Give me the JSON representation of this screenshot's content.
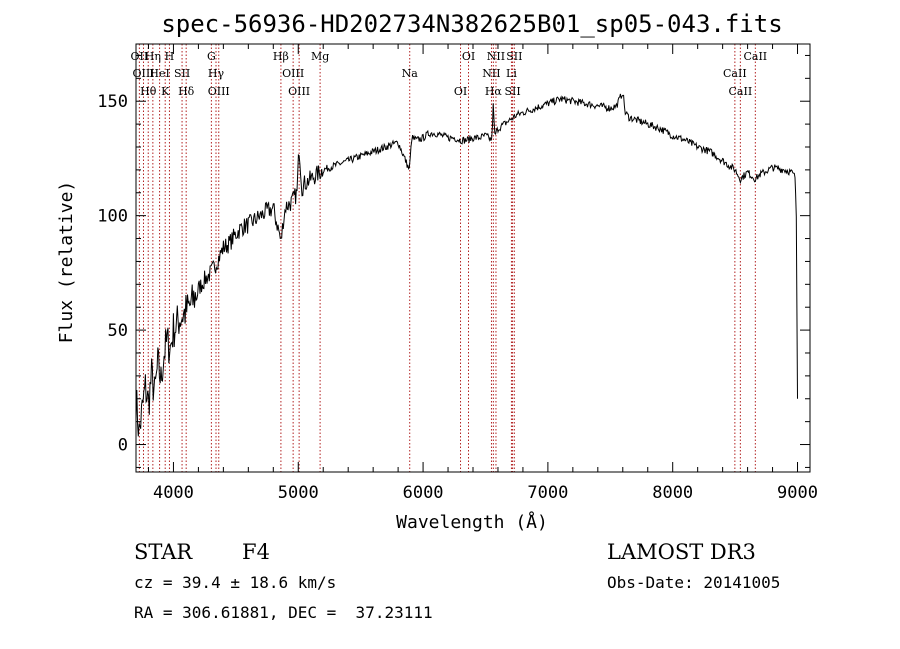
{
  "chart_data": {
    "type": "line",
    "title": "spec-56936-HD202734N382625B01_sp05-043.fits",
    "xlabel": "Wavelength (Å)",
    "ylabel": "Flux (relative)",
    "xlim": [
      3700,
      9100
    ],
    "ylim": [
      -12,
      175
    ],
    "xticks": [
      4000,
      5000,
      6000,
      7000,
      8000,
      9000
    ],
    "xtick_labels": [
      "4000",
      "5000",
      "6000",
      "7000",
      "8000",
      "9000"
    ],
    "yticks": [
      0,
      50,
      100,
      150
    ],
    "ytick_labels": [
      "0",
      "50",
      "100",
      "150"
    ],
    "grid": false,
    "legend": "none",
    "series": [
      {
        "name": "spectrum",
        "x": [
          3700,
          3725,
          3750,
          3775,
          3800,
          3825,
          3850,
          3875,
          3900,
          3925,
          3950,
          3975,
          4000,
          4050,
          4100,
          4150,
          4200,
          4250,
          4300,
          4350,
          4400,
          4450,
          4500,
          4550,
          4600,
          4650,
          4700,
          4750,
          4800,
          4850,
          4861,
          4880,
          4900,
          4950,
          4990,
          5007,
          5030,
          5050,
          5100,
          5150,
          5200,
          5300,
          5400,
          5500,
          5600,
          5700,
          5800,
          5890,
          5910,
          5950,
          6000,
          6050,
          6100,
          6150,
          6200,
          6250,
          6300,
          6350,
          6400,
          6450,
          6500,
          6550,
          6562,
          6575,
          6600,
          6650,
          6700,
          6750,
          6800,
          6900,
          7000,
          7100,
          7200,
          7300,
          7400,
          7500,
          7550,
          7600,
          7620,
          7650,
          7700,
          7800,
          7900,
          8000,
          8100,
          8200,
          8300,
          8400,
          8500,
          8542,
          8600,
          8662,
          8700,
          8800,
          8900,
          8950,
          8980,
          8990,
          9000
        ],
        "y": [
          20,
          5,
          15,
          25,
          18,
          30,
          22,
          35,
          28,
          40,
          45,
          42,
          50,
          55,
          58,
          62,
          68,
          72,
          75,
          80,
          86,
          88,
          92,
          95,
          96,
          98,
          100,
          102,
          103,
          92,
          88,
          98,
          104,
          106,
          110,
          130,
          112,
          114,
          116,
          118,
          120,
          122,
          124,
          126,
          128,
          130,
          132,
          120,
          134,
          133,
          134,
          136,
          136,
          135,
          134,
          134,
          133,
          133,
          134,
          134,
          135,
          133,
          148,
          135,
          138,
          140,
          142,
          144,
          145,
          147,
          149,
          151,
          150,
          149,
          148,
          147,
          148,
          154,
          145,
          143,
          142,
          140,
          138,
          135,
          133,
          130,
          128,
          124,
          120,
          116,
          119,
          116,
          118,
          121,
          120,
          119,
          117,
          100,
          20
        ]
      }
    ],
    "lines": [
      {
        "label": "Hθ",
        "x": 3798
      },
      {
        "label": "OII",
        "x": 3727
      },
      {
        "label": "OIII",
        "x": 3760
      },
      {
        "label": "K",
        "x": 3934
      },
      {
        "label": "HeI",
        "x": 3889
      },
      {
        "label": "Hη",
        "x": 3835
      },
      {
        "label": "SII",
        "x": 4069
      },
      {
        "label": "H",
        "x": 3968
      },
      {
        "label": "Hδ",
        "x": 4102
      },
      {
        "label": "OIII",
        "x": 4363
      },
      {
        "label": "Hγ",
        "x": 4341
      },
      {
        "label": "G",
        "x": 4304
      },
      {
        "label": "Hβ",
        "x": 4861
      },
      {
        "label": "OIII",
        "x": 4959
      },
      {
        "label": "OIII",
        "x": 5007
      },
      {
        "label": "Mg",
        "x": 5175
      },
      {
        "label": "Na",
        "x": 5893
      },
      {
        "label": "OI",
        "x": 6300
      },
      {
        "label": "OI",
        "x": 6364
      },
      {
        "label": "Hα",
        "x": 6563
      },
      {
        "label": "NII",
        "x": 6548
      },
      {
        "label": "NII",
        "x": 6584
      },
      {
        "label": "SII",
        "x": 6717
      },
      {
        "label": "Li",
        "x": 6708
      },
      {
        "label": "SII",
        "x": 6731
      },
      {
        "label": "CaII",
        "x": 8542
      },
      {
        "label": "CaII",
        "x": 8498
      },
      {
        "label": "CaII",
        "x": 8662
      }
    ],
    "line_color": "#b22222"
  },
  "info": {
    "class_label": "STAR",
    "subclass": "F4",
    "survey": "LAMOST DR3",
    "cz": "cz = 39.4 ± 18.6 km/s",
    "obs_date": "Obs-Date: 20141005",
    "coords": "RA = 306.61881, DEC =  37.23111"
  }
}
